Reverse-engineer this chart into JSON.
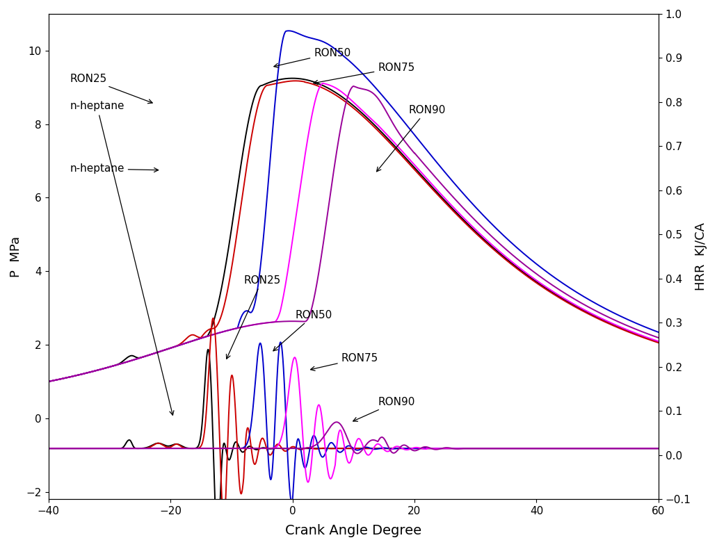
{
  "xlabel": "Crank Angle Degree",
  "ylabel_left": "P  MPa",
  "ylabel_right": "HRR  KJ/CA",
  "xlim": [
    -40,
    60
  ],
  "ylim_left": [
    -2.2,
    11.0
  ],
  "ylim_right": [
    -0.1,
    1.0
  ],
  "xticks": [
    -40,
    -20,
    0,
    20,
    40,
    60
  ],
  "yticks_left": [
    -2,
    0,
    2,
    4,
    6,
    8,
    10
  ],
  "yticks_right": [
    -0.1,
    0.0,
    0.1,
    0.2,
    0.3,
    0.4,
    0.5,
    0.6,
    0.7,
    0.8,
    0.9,
    1.0
  ],
  "colors": {
    "n-heptane": "#000000",
    "RON25": "#cc0000",
    "RON50": "#0000cc",
    "RON75": "#ff00ff",
    "RON90": "#990099"
  },
  "background": "#ffffff",
  "linewidth": 1.4
}
